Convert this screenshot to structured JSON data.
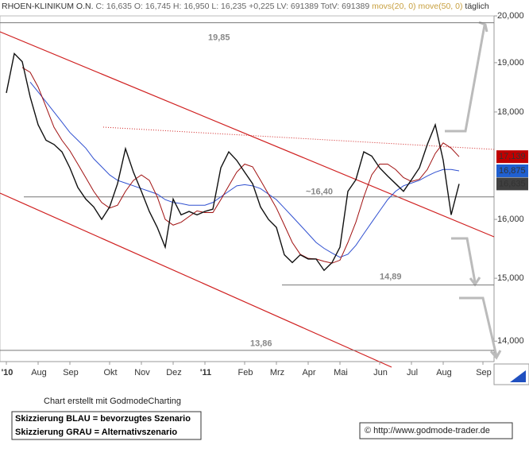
{
  "chart_data": {
    "type": "line",
    "title": "RHOEN-KLINIKUM O.N.",
    "info": "C: 16,635 O: 16,745 H: 16,950 L: 16,235 +0,225 LV: 691389 TotV: 691389",
    "period": "täglich",
    "log_scale": true,
    "ylim": [
      13.69,
      20.0
    ],
    "yticks": [
      {
        "value": 14,
        "label": "14,000"
      },
      {
        "value": 15,
        "label": "15,000"
      },
      {
        "value": 16,
        "label": "16,000"
      },
      {
        "value": 18,
        "label": "18,000"
      },
      {
        "value": 19,
        "label": "19,000"
      },
      {
        "value": 20,
        "label": "20,000"
      }
    ],
    "categories": [
      "'10",
      null,
      null,
      null,
      "Aug",
      null,
      null,
      null,
      "Sep",
      null,
      null,
      null,
      null,
      "Okt",
      null,
      null,
      null,
      "Nov",
      null,
      null,
      null,
      "Dez",
      null,
      null,
      null,
      "'11",
      null,
      null,
      null,
      null,
      "Feb",
      null,
      null,
      null,
      "Mrz",
      null,
      null,
      null,
      "Apr",
      null,
      null,
      null,
      "Mai",
      null,
      null,
      null,
      null,
      "Jun",
      null,
      null,
      null,
      "Jul",
      null,
      null,
      null,
      "Aug",
      null,
      null,
      null,
      null,
      "Sep"
    ],
    "series": [
      {
        "name": "RHOEN-KLINIKUM O.N.",
        "color": "#111111",
        "values": [
          18.38,
          19.19,
          19.02,
          18.3,
          17.75,
          17.45,
          17.37,
          17.23,
          16.93,
          16.57,
          16.36,
          16.22,
          16.0,
          16.22,
          16.64,
          17.29,
          16.85,
          16.5,
          16.14,
          15.86,
          15.52,
          16.36,
          16.08,
          16.14,
          16.08,
          16.14,
          16.18,
          16.93,
          17.23,
          17.07,
          16.85,
          16.64,
          16.22,
          16.0,
          15.86,
          15.39,
          15.26,
          15.39,
          15.32,
          15.32,
          15.13,
          15.26,
          15.52,
          16.5,
          16.71,
          17.23,
          17.15,
          16.93,
          16.78,
          16.64,
          16.5,
          16.71,
          16.93,
          17.37,
          17.75,
          17.07,
          16.08,
          16.635,
          null,
          null,
          null
        ]
      },
      {
        "name": "movs(20, 0)",
        "color": "#a01010",
        "values": [
          null,
          null,
          18.9,
          18.8,
          18.5,
          18.1,
          17.7,
          17.45,
          17.25,
          17.0,
          16.75,
          16.5,
          16.3,
          16.2,
          16.25,
          16.5,
          16.7,
          16.8,
          16.7,
          16.4,
          16.0,
          15.9,
          15.95,
          16.05,
          16.15,
          16.12,
          16.12,
          16.35,
          16.6,
          16.85,
          17.0,
          16.95,
          16.7,
          16.45,
          16.2,
          15.9,
          15.6,
          15.4,
          15.33,
          15.32,
          15.28,
          15.25,
          15.3,
          15.6,
          15.95,
          16.4,
          16.8,
          17.0,
          17.0,
          16.9,
          16.75,
          16.68,
          16.72,
          16.9,
          17.2,
          17.4,
          17.3,
          17.139,
          null,
          null,
          null
        ]
      },
      {
        "name": "move(50, 0)",
        "color": "#3050d0",
        "values": [
          null,
          null,
          null,
          18.6,
          18.4,
          18.2,
          18.0,
          17.8,
          17.6,
          17.45,
          17.3,
          17.1,
          16.95,
          16.8,
          16.7,
          16.65,
          16.6,
          16.55,
          16.5,
          16.45,
          16.35,
          16.3,
          16.28,
          16.25,
          16.25,
          16.25,
          16.3,
          16.4,
          16.5,
          16.6,
          16.62,
          16.6,
          16.55,
          16.45,
          16.35,
          16.2,
          16.05,
          15.9,
          15.75,
          15.6,
          15.5,
          15.42,
          15.35,
          15.4,
          15.55,
          15.75,
          15.95,
          16.15,
          16.35,
          16.5,
          16.6,
          16.65,
          16.7,
          16.78,
          16.85,
          16.9,
          16.9,
          16.875,
          null,
          null,
          null
        ]
      }
    ],
    "price_labels": [
      {
        "value": 17.139,
        "label": "17,139",
        "color": "#c00000"
      },
      {
        "value": 16.875,
        "label": "16,875",
        "color": "#1f5fd0"
      },
      {
        "value": 16.635,
        "label": "16,635",
        "color": "#404040"
      }
    ],
    "levels": [
      {
        "value": 19.85,
        "label": "19,85"
      },
      {
        "value": 16.4,
        "label": "~16,40"
      },
      {
        "value": 14.89,
        "label": "14,89"
      },
      {
        "value": 13.86,
        "label": "13,86"
      }
    ],
    "credit": "Chart erstellt mit GodmodeCharting",
    "notes": [
      "Skizzierung BLAU = bevorzugtes Szenario",
      "Skizzierung GRAU = Alternativszenario"
    ],
    "source": "© http://www.godmode-trader.de"
  }
}
